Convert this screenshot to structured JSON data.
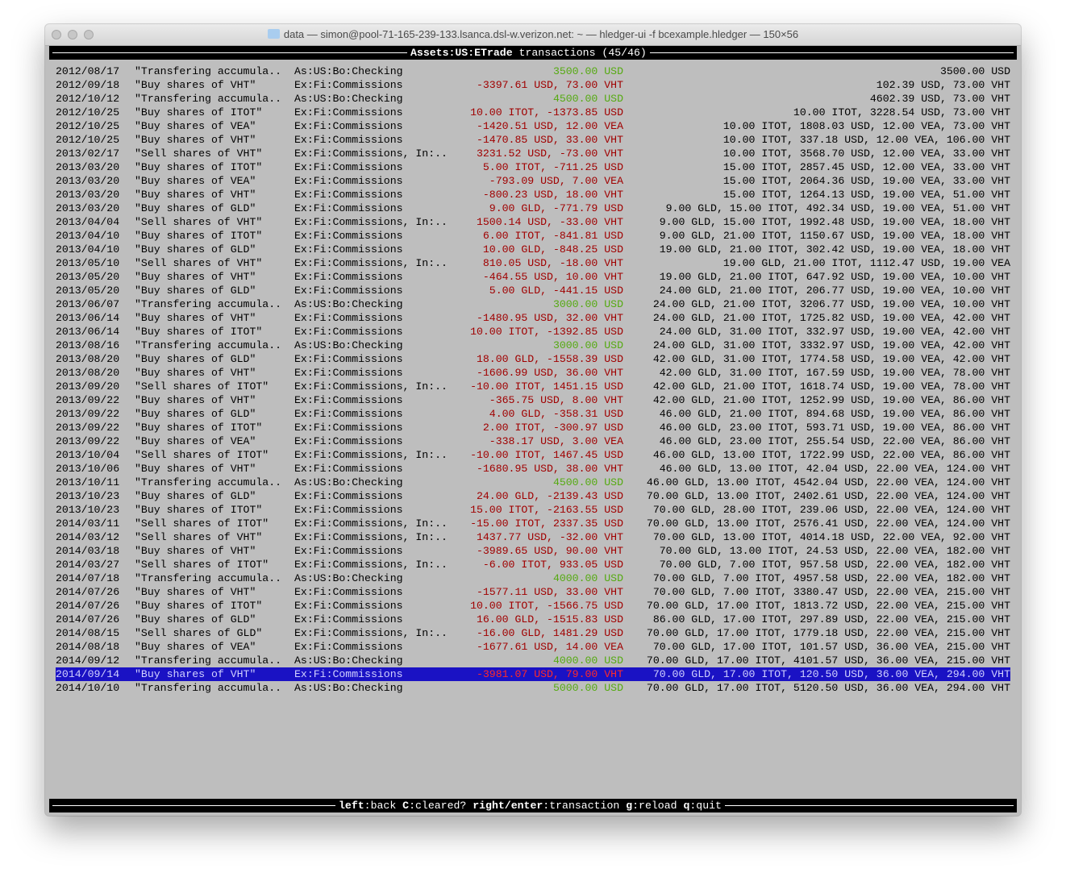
{
  "window": {
    "title": "data — simon@pool-71-165-239-133.lsanca.dsl-w.verizon.net: ~ — hledger-ui -f bcexample.hledger — 150×56"
  },
  "header": {
    "account": "Assets:US:ETrade",
    "label": "transactions (45/46)"
  },
  "colors": {
    "increase": "#55aa11",
    "decrease": "#a00000",
    "selection": "#1a12c4"
  },
  "selected_index": 44,
  "rows": [
    {
      "date": "2012/08/17",
      "desc": "\"Transfering accumula..",
      "account": "As:US:Bo:Checking",
      "change": "3500.00 USD",
      "kind": "increase",
      "balance": "3500.00 USD"
    },
    {
      "date": "2012/09/18",
      "desc": "\"Buy shares of VHT\"",
      "account": "Ex:Fi:Commissions",
      "change": "-3397.61 USD, 73.00 VHT",
      "kind": "decrease",
      "balance": "102.39 USD, 73.00 VHT"
    },
    {
      "date": "2012/10/12",
      "desc": "\"Transfering accumula..",
      "account": "As:US:Bo:Checking",
      "change": "4500.00 USD",
      "kind": "increase",
      "balance": "4602.39 USD, 73.00 VHT"
    },
    {
      "date": "2012/10/25",
      "desc": "\"Buy shares of ITOT\"",
      "account": "Ex:Fi:Commissions",
      "change": "10.00 ITOT, -1373.85 USD",
      "kind": "decrease",
      "balance": "10.00 ITOT, 3228.54 USD, 73.00 VHT"
    },
    {
      "date": "2012/10/25",
      "desc": "\"Buy shares of VEA\"",
      "account": "Ex:Fi:Commissions",
      "change": "-1420.51 USD, 12.00 VEA",
      "kind": "decrease",
      "balance": "10.00 ITOT, 1808.03 USD, 12.00 VEA, 73.00 VHT"
    },
    {
      "date": "2012/10/25",
      "desc": "\"Buy shares of VHT\"",
      "account": "Ex:Fi:Commissions",
      "change": "-1470.85 USD, 33.00 VHT",
      "kind": "decrease",
      "balance": "10.00 ITOT, 337.18 USD, 12.00 VEA, 106.00 VHT"
    },
    {
      "date": "2013/02/17",
      "desc": "\"Sell shares of VHT\"",
      "account": "Ex:Fi:Commissions, In:..",
      "change": "3231.52 USD, -73.00 VHT",
      "kind": "decrease",
      "balance": "10.00 ITOT, 3568.70 USD, 12.00 VEA, 33.00 VHT"
    },
    {
      "date": "2013/03/20",
      "desc": "\"Buy shares of ITOT\"",
      "account": "Ex:Fi:Commissions",
      "change": "5.00 ITOT, -711.25 USD",
      "kind": "decrease",
      "balance": "15.00 ITOT, 2857.45 USD, 12.00 VEA, 33.00 VHT"
    },
    {
      "date": "2013/03/20",
      "desc": "\"Buy shares of VEA\"",
      "account": "Ex:Fi:Commissions",
      "change": "-793.09 USD, 7.00 VEA",
      "kind": "decrease",
      "balance": "15.00 ITOT, 2064.36 USD, 19.00 VEA, 33.00 VHT"
    },
    {
      "date": "2013/03/20",
      "desc": "\"Buy shares of VHT\"",
      "account": "Ex:Fi:Commissions",
      "change": "-800.23 USD, 18.00 VHT",
      "kind": "decrease",
      "balance": "15.00 ITOT, 1264.13 USD, 19.00 VEA, 51.00 VHT"
    },
    {
      "date": "2013/03/20",
      "desc": "\"Buy shares of GLD\"",
      "account": "Ex:Fi:Commissions",
      "change": "9.00 GLD, -771.79 USD",
      "kind": "decrease",
      "balance": "9.00 GLD, 15.00 ITOT, 492.34 USD, 19.00 VEA, 51.00 VHT"
    },
    {
      "date": "2013/04/04",
      "desc": "\"Sell shares of VHT\"",
      "account": "Ex:Fi:Commissions, In:..",
      "change": "1500.14 USD, -33.00 VHT",
      "kind": "decrease",
      "balance": "9.00 GLD, 15.00 ITOT, 1992.48 USD, 19.00 VEA, 18.00 VHT"
    },
    {
      "date": "2013/04/10",
      "desc": "\"Buy shares of ITOT\"",
      "account": "Ex:Fi:Commissions",
      "change": "6.00 ITOT, -841.81 USD",
      "kind": "decrease",
      "balance": "9.00 GLD, 21.00 ITOT, 1150.67 USD, 19.00 VEA, 18.00 VHT"
    },
    {
      "date": "2013/04/10",
      "desc": "\"Buy shares of GLD\"",
      "account": "Ex:Fi:Commissions",
      "change": "10.00 GLD, -848.25 USD",
      "kind": "decrease",
      "balance": "19.00 GLD, 21.00 ITOT, 302.42 USD, 19.00 VEA, 18.00 VHT"
    },
    {
      "date": "2013/05/10",
      "desc": "\"Sell shares of VHT\"",
      "account": "Ex:Fi:Commissions, In:..",
      "change": "810.05 USD, -18.00 VHT",
      "kind": "decrease",
      "balance": "19.00 GLD, 21.00 ITOT, 1112.47 USD, 19.00 VEA"
    },
    {
      "date": "2013/05/20",
      "desc": "\"Buy shares of VHT\"",
      "account": "Ex:Fi:Commissions",
      "change": "-464.55 USD, 10.00 VHT",
      "kind": "decrease",
      "balance": "19.00 GLD, 21.00 ITOT, 647.92 USD, 19.00 VEA, 10.00 VHT"
    },
    {
      "date": "2013/05/20",
      "desc": "\"Buy shares of GLD\"",
      "account": "Ex:Fi:Commissions",
      "change": "5.00 GLD, -441.15 USD",
      "kind": "decrease",
      "balance": "24.00 GLD, 21.00 ITOT, 206.77 USD, 19.00 VEA, 10.00 VHT"
    },
    {
      "date": "2013/06/07",
      "desc": "\"Transfering accumula..",
      "account": "As:US:Bo:Checking",
      "change": "3000.00 USD",
      "kind": "increase",
      "balance": "24.00 GLD, 21.00 ITOT, 3206.77 USD, 19.00 VEA, 10.00 VHT"
    },
    {
      "date": "2013/06/14",
      "desc": "\"Buy shares of VHT\"",
      "account": "Ex:Fi:Commissions",
      "change": "-1480.95 USD, 32.00 VHT",
      "kind": "decrease",
      "balance": "24.00 GLD, 21.00 ITOT, 1725.82 USD, 19.00 VEA, 42.00 VHT"
    },
    {
      "date": "2013/06/14",
      "desc": "\"Buy shares of ITOT\"",
      "account": "Ex:Fi:Commissions",
      "change": "10.00 ITOT, -1392.85 USD",
      "kind": "decrease",
      "balance": "24.00 GLD, 31.00 ITOT, 332.97 USD, 19.00 VEA, 42.00 VHT"
    },
    {
      "date": "2013/08/16",
      "desc": "\"Transfering accumula..",
      "account": "As:US:Bo:Checking",
      "change": "3000.00 USD",
      "kind": "increase",
      "balance": "24.00 GLD, 31.00 ITOT, 3332.97 USD, 19.00 VEA, 42.00 VHT"
    },
    {
      "date": "2013/08/20",
      "desc": "\"Buy shares of GLD\"",
      "account": "Ex:Fi:Commissions",
      "change": "18.00 GLD, -1558.39 USD",
      "kind": "decrease",
      "balance": "42.00 GLD, 31.00 ITOT, 1774.58 USD, 19.00 VEA, 42.00 VHT"
    },
    {
      "date": "2013/08/20",
      "desc": "\"Buy shares of VHT\"",
      "account": "Ex:Fi:Commissions",
      "change": "-1606.99 USD, 36.00 VHT",
      "kind": "decrease",
      "balance": "42.00 GLD, 31.00 ITOT, 167.59 USD, 19.00 VEA, 78.00 VHT"
    },
    {
      "date": "2013/09/20",
      "desc": "\"Sell shares of ITOT\"",
      "account": "Ex:Fi:Commissions, In:..",
      "change": "-10.00 ITOT, 1451.15 USD",
      "kind": "decrease",
      "balance": "42.00 GLD, 21.00 ITOT, 1618.74 USD, 19.00 VEA, 78.00 VHT"
    },
    {
      "date": "2013/09/22",
      "desc": "\"Buy shares of VHT\"",
      "account": "Ex:Fi:Commissions",
      "change": "-365.75 USD, 8.00 VHT",
      "kind": "decrease",
      "balance": "42.00 GLD, 21.00 ITOT, 1252.99 USD, 19.00 VEA, 86.00 VHT"
    },
    {
      "date": "2013/09/22",
      "desc": "\"Buy shares of GLD\"",
      "account": "Ex:Fi:Commissions",
      "change": "4.00 GLD, -358.31 USD",
      "kind": "decrease",
      "balance": "46.00 GLD, 21.00 ITOT, 894.68 USD, 19.00 VEA, 86.00 VHT"
    },
    {
      "date": "2013/09/22",
      "desc": "\"Buy shares of ITOT\"",
      "account": "Ex:Fi:Commissions",
      "change": "2.00 ITOT, -300.97 USD",
      "kind": "decrease",
      "balance": "46.00 GLD, 23.00 ITOT, 593.71 USD, 19.00 VEA, 86.00 VHT"
    },
    {
      "date": "2013/09/22",
      "desc": "\"Buy shares of VEA\"",
      "account": "Ex:Fi:Commissions",
      "change": "-338.17 USD, 3.00 VEA",
      "kind": "decrease",
      "balance": "46.00 GLD, 23.00 ITOT, 255.54 USD, 22.00 VEA, 86.00 VHT"
    },
    {
      "date": "2013/10/04",
      "desc": "\"Sell shares of ITOT\"",
      "account": "Ex:Fi:Commissions, In:..",
      "change": "-10.00 ITOT, 1467.45 USD",
      "kind": "decrease",
      "balance": "46.00 GLD, 13.00 ITOT, 1722.99 USD, 22.00 VEA, 86.00 VHT"
    },
    {
      "date": "2013/10/06",
      "desc": "\"Buy shares of VHT\"",
      "account": "Ex:Fi:Commissions",
      "change": "-1680.95 USD, 38.00 VHT",
      "kind": "decrease",
      "balance": "46.00 GLD, 13.00 ITOT, 42.04 USD, 22.00 VEA, 124.00 VHT"
    },
    {
      "date": "2013/10/11",
      "desc": "\"Transfering accumula..",
      "account": "As:US:Bo:Checking",
      "change": "4500.00 USD",
      "kind": "increase",
      "balance": "46.00 GLD, 13.00 ITOT, 4542.04 USD, 22.00 VEA, 124.00 VHT"
    },
    {
      "date": "2013/10/23",
      "desc": "\"Buy shares of GLD\"",
      "account": "Ex:Fi:Commissions",
      "change": "24.00 GLD, -2139.43 USD",
      "kind": "decrease",
      "balance": "70.00 GLD, 13.00 ITOT, 2402.61 USD, 22.00 VEA, 124.00 VHT"
    },
    {
      "date": "2013/10/23",
      "desc": "\"Buy shares of ITOT\"",
      "account": "Ex:Fi:Commissions",
      "change": "15.00 ITOT, -2163.55 USD",
      "kind": "decrease",
      "balance": "70.00 GLD, 28.00 ITOT, 239.06 USD, 22.00 VEA, 124.00 VHT"
    },
    {
      "date": "2014/03/11",
      "desc": "\"Sell shares of ITOT\"",
      "account": "Ex:Fi:Commissions, In:..",
      "change": "-15.00 ITOT, 2337.35 USD",
      "kind": "decrease",
      "balance": "70.00 GLD, 13.00 ITOT, 2576.41 USD, 22.00 VEA, 124.00 VHT"
    },
    {
      "date": "2014/03/12",
      "desc": "\"Sell shares of VHT\"",
      "account": "Ex:Fi:Commissions, In:..",
      "change": "1437.77 USD, -32.00 VHT",
      "kind": "decrease",
      "balance": "70.00 GLD, 13.00 ITOT, 4014.18 USD, 22.00 VEA, 92.00 VHT"
    },
    {
      "date": "2014/03/18",
      "desc": "\"Buy shares of VHT\"",
      "account": "Ex:Fi:Commissions",
      "change": "-3989.65 USD, 90.00 VHT",
      "kind": "decrease",
      "balance": "70.00 GLD, 13.00 ITOT, 24.53 USD, 22.00 VEA, 182.00 VHT"
    },
    {
      "date": "2014/03/27",
      "desc": "\"Sell shares of ITOT\"",
      "account": "Ex:Fi:Commissions, In:..",
      "change": "-6.00 ITOT, 933.05 USD",
      "kind": "decrease",
      "balance": "70.00 GLD, 7.00 ITOT, 957.58 USD, 22.00 VEA, 182.00 VHT"
    },
    {
      "date": "2014/07/18",
      "desc": "\"Transfering accumula..",
      "account": "As:US:Bo:Checking",
      "change": "4000.00 USD",
      "kind": "increase",
      "balance": "70.00 GLD, 7.00 ITOT, 4957.58 USD, 22.00 VEA, 182.00 VHT"
    },
    {
      "date": "2014/07/26",
      "desc": "\"Buy shares of VHT\"",
      "account": "Ex:Fi:Commissions",
      "change": "-1577.11 USD, 33.00 VHT",
      "kind": "decrease",
      "balance": "70.00 GLD, 7.00 ITOT, 3380.47 USD, 22.00 VEA, 215.00 VHT"
    },
    {
      "date": "2014/07/26",
      "desc": "\"Buy shares of ITOT\"",
      "account": "Ex:Fi:Commissions",
      "change": "10.00 ITOT, -1566.75 USD",
      "kind": "decrease",
      "balance": "70.00 GLD, 17.00 ITOT, 1813.72 USD, 22.00 VEA, 215.00 VHT"
    },
    {
      "date": "2014/07/26",
      "desc": "\"Buy shares of GLD\"",
      "account": "Ex:Fi:Commissions",
      "change": "16.00 GLD, -1515.83 USD",
      "kind": "decrease",
      "balance": "86.00 GLD, 17.00 ITOT, 297.89 USD, 22.00 VEA, 215.00 VHT"
    },
    {
      "date": "2014/08/15",
      "desc": "\"Sell shares of GLD\"",
      "account": "Ex:Fi:Commissions, In:..",
      "change": "-16.00 GLD, 1481.29 USD",
      "kind": "decrease",
      "balance": "70.00 GLD, 17.00 ITOT, 1779.18 USD, 22.00 VEA, 215.00 VHT"
    },
    {
      "date": "2014/08/18",
      "desc": "\"Buy shares of VEA\"",
      "account": "Ex:Fi:Commissions",
      "change": "-1677.61 USD, 14.00 VEA",
      "kind": "decrease",
      "balance": "70.00 GLD, 17.00 ITOT, 101.57 USD, 36.00 VEA, 215.00 VHT"
    },
    {
      "date": "2014/09/12",
      "desc": "\"Transfering accumula..",
      "account": "As:US:Bo:Checking",
      "change": "4000.00 USD",
      "kind": "increase",
      "balance": "70.00 GLD, 17.00 ITOT, 4101.57 USD, 36.00 VEA, 215.00 VHT"
    },
    {
      "date": "2014/09/14",
      "desc": "\"Buy shares of VHT\"",
      "account": "Ex:Fi:Commissions",
      "change": "-3981.07 USD, 79.00 VHT",
      "kind": "decrease",
      "balance": "70.00 GLD, 17.00 ITOT, 120.50 USD, 36.00 VEA, 294.00 VHT"
    },
    {
      "date": "2014/10/10",
      "desc": "\"Transfering accumula..",
      "account": "As:US:Bo:Checking",
      "change": "5000.00 USD",
      "kind": "increase",
      "balance": "70.00 GLD, 17.00 ITOT, 5120.50 USD, 36.00 VEA, 294.00 VHT"
    }
  ],
  "footer": {
    "keys": [
      {
        "key": "left",
        "action": "back"
      },
      {
        "key": "C",
        "action": "cleared?"
      },
      {
        "key": "right/enter",
        "action": "transaction"
      },
      {
        "key": "g",
        "action": "reload"
      },
      {
        "key": "q",
        "action": "quit"
      }
    ]
  }
}
